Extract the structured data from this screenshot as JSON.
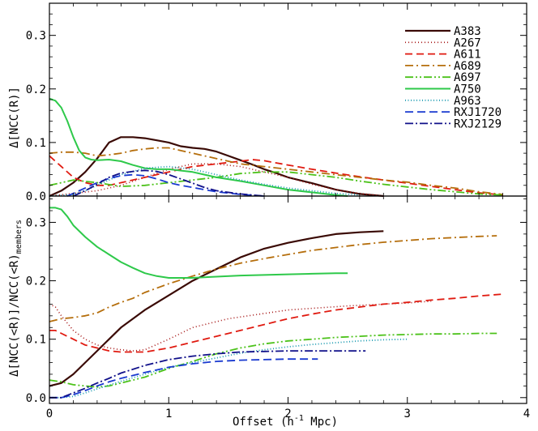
{
  "chart_data": [
    {
      "type": "line",
      "panel": "top",
      "ylabel": "Δ[NCC(R)]",
      "xlim": [
        0,
        4
      ],
      "ylim": [
        0,
        0.36
      ],
      "xticks": [
        0,
        1,
        2,
        3,
        4
      ],
      "yticks": [
        0.0,
        0.1,
        0.2,
        0.3
      ],
      "ytick_labels": [
        "0.0",
        "0.1",
        "0.2",
        "0.3"
      ],
      "legend_position": "top-right",
      "series": [
        {
          "name": "A383",
          "color": "#3a0a05",
          "dash": "solid",
          "width": 2.2,
          "x": [
            0,
            0.1,
            0.2,
            0.3,
            0.4,
            0.5,
            0.6,
            0.7,
            0.8,
            0.9,
            1.0,
            1.1,
            1.2,
            1.3,
            1.4,
            1.5,
            1.6,
            1.7,
            1.8,
            1.9,
            2.0,
            2.2,
            2.4,
            2.6,
            2.8
          ],
          "y": [
            0.0,
            0.01,
            0.025,
            0.045,
            0.07,
            0.1,
            0.11,
            0.11,
            0.108,
            0.104,
            0.1,
            0.093,
            0.09,
            0.088,
            0.083,
            0.075,
            0.067,
            0.059,
            0.05,
            0.043,
            0.035,
            0.024,
            0.012,
            0.004,
            0.0
          ]
        },
        {
          "name": "A267",
          "color": "#a51414",
          "dash": "1,3",
          "width": 1.6,
          "x": [
            0,
            0.2,
            0.4,
            0.6,
            0.8,
            1.0,
            1.2,
            1.4,
            1.6,
            1.8,
            2.0,
            2.2,
            2.4,
            2.6,
            2.8
          ],
          "y": [
            0.0,
            0.005,
            0.01,
            0.02,
            0.035,
            0.05,
            0.06,
            0.06,
            0.055,
            0.045,
            0.035,
            0.022,
            0.012,
            0.005,
            0.0
          ]
        },
        {
          "name": "A611",
          "color": "#e01a10",
          "dash": "9,5",
          "width": 1.8,
          "x": [
            0,
            0.1,
            0.2,
            0.3,
            0.4,
            0.5,
            0.6,
            0.8,
            1.0,
            1.2,
            1.4,
            1.6,
            1.7,
            1.8,
            2.0,
            2.2,
            2.4,
            2.6,
            2.8,
            3.0,
            3.2,
            3.4,
            3.6,
            3.8
          ],
          "y": [
            0.075,
            0.055,
            0.035,
            0.025,
            0.02,
            0.02,
            0.025,
            0.035,
            0.045,
            0.055,
            0.06,
            0.065,
            0.068,
            0.066,
            0.058,
            0.05,
            0.043,
            0.036,
            0.03,
            0.024,
            0.018,
            0.012,
            0.006,
            0.002
          ]
        },
        {
          "name": "A689",
          "color": "#b56e0c",
          "dash": "10,4,2,4",
          "width": 1.8,
          "x": [
            0,
            0.1,
            0.2,
            0.3,
            0.4,
            0.5,
            0.6,
            0.7,
            0.8,
            0.9,
            1.0,
            1.2,
            1.4,
            1.6,
            1.8,
            2.0,
            2.2,
            2.4,
            2.6,
            2.8,
            3.0,
            3.2,
            3.4,
            3.6,
            3.8
          ],
          "y": [
            0.08,
            0.082,
            0.082,
            0.08,
            0.075,
            0.077,
            0.08,
            0.085,
            0.088,
            0.09,
            0.09,
            0.08,
            0.07,
            0.06,
            0.055,
            0.05,
            0.045,
            0.04,
            0.035,
            0.03,
            0.026,
            0.02,
            0.015,
            0.008,
            0.003
          ]
        },
        {
          "name": "A697",
          "color": "#4cc21a",
          "dash": "10,3,2,3,2,3",
          "width": 1.8,
          "x": [
            0,
            0.2,
            0.4,
            0.6,
            0.8,
            1.0,
            1.2,
            1.4,
            1.6,
            1.8,
            2.0,
            2.2,
            2.4,
            2.6,
            2.8,
            3.0,
            3.2,
            3.4,
            3.6,
            3.8
          ],
          "y": [
            0.02,
            0.03,
            0.025,
            0.018,
            0.02,
            0.025,
            0.03,
            0.035,
            0.042,
            0.045,
            0.045,
            0.04,
            0.035,
            0.028,
            0.022,
            0.017,
            0.012,
            0.008,
            0.004,
            0.002
          ]
        },
        {
          "name": "A750",
          "color": "#2ec94a",
          "dash": "solid",
          "width": 2.0,
          "x": [
            0,
            0.05,
            0.1,
            0.15,
            0.2,
            0.25,
            0.3,
            0.35,
            0.4,
            0.5,
            0.6,
            0.7,
            0.8,
            0.9,
            1.0,
            1.2,
            1.4,
            1.6,
            1.8,
            2.0,
            2.2,
            2.4,
            2.5
          ],
          "y": [
            0.182,
            0.178,
            0.165,
            0.14,
            0.11,
            0.085,
            0.072,
            0.068,
            0.067,
            0.068,
            0.065,
            0.058,
            0.052,
            0.05,
            0.05,
            0.045,
            0.035,
            0.028,
            0.02,
            0.012,
            0.007,
            0.002,
            0.0
          ]
        },
        {
          "name": "A963",
          "color": "#1a9ab0",
          "dash": "1,2.5",
          "width": 1.8,
          "x": [
            0,
            0.2,
            0.3,
            0.4,
            0.5,
            0.6,
            0.8,
            1.0,
            1.2,
            1.4,
            1.6,
            1.8,
            2.0,
            2.2,
            2.4,
            2.6
          ],
          "y": [
            0.0,
            0.003,
            0.01,
            0.02,
            0.03,
            0.04,
            0.052,
            0.055,
            0.05,
            0.04,
            0.03,
            0.022,
            0.015,
            0.01,
            0.005,
            0.002
          ]
        },
        {
          "name": "RXJ1720",
          "color": "#1a3ad0",
          "dash": "10,5",
          "width": 1.8,
          "x": [
            0.15,
            0.2,
            0.3,
            0.4,
            0.5,
            0.6,
            0.7,
            0.8,
            0.9,
            1.0,
            1.1,
            1.2,
            1.3,
            1.4,
            1.6,
            1.8
          ],
          "y": [
            0.0,
            0.005,
            0.015,
            0.025,
            0.033,
            0.038,
            0.04,
            0.038,
            0.032,
            0.025,
            0.02,
            0.016,
            0.012,
            0.008,
            0.003,
            0.0
          ]
        },
        {
          "name": "RXJ2129",
          "color": "#10108a",
          "dash": "10,3,2,3",
          "width": 1.8,
          "x": [
            0.2,
            0.3,
            0.4,
            0.5,
            0.6,
            0.7,
            0.8,
            0.9,
            1.0,
            1.1,
            1.2,
            1.3,
            1.4,
            1.6,
            1.8
          ],
          "y": [
            0.0,
            0.01,
            0.022,
            0.035,
            0.043,
            0.046,
            0.048,
            0.046,
            0.04,
            0.032,
            0.024,
            0.016,
            0.01,
            0.004,
            0.0
          ]
        }
      ]
    },
    {
      "type": "line",
      "panel": "bottom",
      "ylabel_main": "Δ[NCC(<R)]/NCC(<R)",
      "ylabel_sub": "members",
      "xlabel_main": "Offset (h",
      "xlabel_sup": "-1",
      "xlabel_end": " Mpc)",
      "xlim": [
        0,
        4
      ],
      "ylim": [
        -0.01,
        0.345
      ],
      "xticks": [
        0,
        1,
        2,
        3,
        4
      ],
      "xtick_labels": [
        "0",
        "1",
        "2",
        "3",
        "4"
      ],
      "yticks": [
        0.0,
        0.1,
        0.2,
        0.3
      ],
      "ytick_labels": [
        "0.0",
        "0.1",
        "0.2",
        "0.3"
      ],
      "series": [
        {
          "name": "A383",
          "color": "#3a0a05",
          "dash": "solid",
          "width": 2.2,
          "x": [
            0,
            0.1,
            0.2,
            0.3,
            0.4,
            0.5,
            0.6,
            0.8,
            1.0,
            1.2,
            1.4,
            1.6,
            1.8,
            2.0,
            2.2,
            2.4,
            2.6,
            2.8
          ],
          "y": [
            0.02,
            0.025,
            0.04,
            0.06,
            0.08,
            0.1,
            0.12,
            0.15,
            0.175,
            0.2,
            0.22,
            0.24,
            0.255,
            0.265,
            0.273,
            0.28,
            0.283,
            0.285
          ]
        },
        {
          "name": "A267",
          "color": "#a51414",
          "dash": "1,3",
          "width": 1.6,
          "x": [
            0,
            0.05,
            0.1,
            0.2,
            0.3,
            0.4,
            0.5,
            0.6,
            0.7,
            0.8,
            1.0,
            1.2,
            1.5,
            2.0,
            2.5,
            3.0,
            3.2
          ],
          "y": [
            0.16,
            0.155,
            0.14,
            0.115,
            0.1,
            0.09,
            0.085,
            0.082,
            0.08,
            0.082,
            0.1,
            0.12,
            0.135,
            0.15,
            0.157,
            0.162,
            0.165
          ]
        },
        {
          "name": "A611",
          "color": "#e01a10",
          "dash": "9,5",
          "width": 1.8,
          "x": [
            0,
            0.05,
            0.1,
            0.2,
            0.3,
            0.4,
            0.5,
            0.6,
            0.8,
            1.0,
            1.2,
            1.4,
            1.6,
            1.8,
            2.0,
            2.2,
            2.4,
            2.6,
            2.8,
            3.0,
            3.2,
            3.4,
            3.6,
            3.8
          ],
          "y": [
            0.115,
            0.115,
            0.11,
            0.1,
            0.09,
            0.085,
            0.08,
            0.078,
            0.078,
            0.085,
            0.095,
            0.105,
            0.115,
            0.125,
            0.135,
            0.143,
            0.15,
            0.155,
            0.16,
            0.163,
            0.167,
            0.17,
            0.174,
            0.177
          ]
        },
        {
          "name": "A689",
          "color": "#b56e0c",
          "dash": "10,4,2,4",
          "width": 1.8,
          "x": [
            0,
            0.1,
            0.2,
            0.3,
            0.4,
            0.5,
            0.6,
            0.7,
            0.8,
            1.0,
            1.2,
            1.4,
            1.6,
            1.8,
            2.0,
            2.2,
            2.4,
            2.6,
            2.8,
            3.0,
            3.2,
            3.4,
            3.6,
            3.75
          ],
          "y": [
            0.13,
            0.135,
            0.137,
            0.14,
            0.145,
            0.155,
            0.163,
            0.17,
            0.18,
            0.195,
            0.208,
            0.22,
            0.23,
            0.238,
            0.245,
            0.252,
            0.257,
            0.262,
            0.266,
            0.269,
            0.272,
            0.274,
            0.276,
            0.277
          ]
        },
        {
          "name": "A697",
          "color": "#4cc21a",
          "dash": "10,3,2,3,2,3",
          "width": 1.8,
          "x": [
            0,
            0.1,
            0.2,
            0.3,
            0.4,
            0.5,
            0.6,
            0.8,
            1.0,
            1.2,
            1.4,
            1.6,
            1.8,
            2.0,
            2.2,
            2.4,
            2.6,
            2.8,
            3.0,
            3.2,
            3.4,
            3.6,
            3.75
          ],
          "y": [
            0.03,
            0.027,
            0.022,
            0.02,
            0.018,
            0.02,
            0.025,
            0.035,
            0.05,
            0.062,
            0.075,
            0.085,
            0.092,
            0.097,
            0.1,
            0.103,
            0.105,
            0.107,
            0.108,
            0.109,
            0.109,
            0.11,
            0.11
          ]
        },
        {
          "name": "A750",
          "color": "#2ec94a",
          "dash": "solid",
          "width": 2.0,
          "x": [
            0,
            0.05,
            0.1,
            0.15,
            0.2,
            0.3,
            0.4,
            0.5,
            0.6,
            0.7,
            0.8,
            0.9,
            1.0,
            1.2,
            1.4,
            1.6,
            1.8,
            2.0,
            2.2,
            2.4,
            2.5
          ],
          "y": [
            0.325,
            0.325,
            0.322,
            0.31,
            0.295,
            0.275,
            0.258,
            0.245,
            0.232,
            0.222,
            0.213,
            0.208,
            0.205,
            0.205,
            0.207,
            0.209,
            0.21,
            0.211,
            0.212,
            0.213,
            0.213
          ]
        },
        {
          "name": "A963",
          "color": "#1a9ab0",
          "dash": "1,2.5",
          "width": 1.8,
          "x": [
            0,
            0.1,
            0.2,
            0.3,
            0.4,
            0.6,
            0.8,
            1.0,
            1.2,
            1.4,
            1.6,
            1.8,
            2.0,
            2.2,
            2.4,
            2.6,
            2.8,
            3.0
          ],
          "y": [
            0.0,
            0.0,
            0.002,
            0.008,
            0.015,
            0.028,
            0.04,
            0.052,
            0.06,
            0.068,
            0.076,
            0.082,
            0.087,
            0.091,
            0.094,
            0.097,
            0.099,
            0.1
          ]
        },
        {
          "name": "RXJ1720",
          "color": "#1a3ad0",
          "dash": "10,5",
          "width": 1.8,
          "x": [
            0,
            0.1,
            0.2,
            0.3,
            0.4,
            0.5,
            0.6,
            0.8,
            1.0,
            1.2,
            1.4,
            1.6,
            1.8,
            2.0,
            2.25
          ],
          "y": [
            0.0,
            0.0,
            0.005,
            0.012,
            0.02,
            0.027,
            0.033,
            0.043,
            0.052,
            0.058,
            0.062,
            0.064,
            0.065,
            0.066,
            0.066
          ]
        },
        {
          "name": "RXJ2129",
          "color": "#10108a",
          "dash": "10,3,2,3",
          "width": 1.8,
          "x": [
            0,
            0.1,
            0.2,
            0.3,
            0.4,
            0.5,
            0.6,
            0.8,
            1.0,
            1.2,
            1.4,
            1.6,
            1.8,
            2.0,
            2.2,
            2.4,
            2.65
          ],
          "y": [
            0.0,
            0.0,
            0.008,
            0.016,
            0.025,
            0.033,
            0.042,
            0.055,
            0.065,
            0.071,
            0.075,
            0.078,
            0.079,
            0.08,
            0.08,
            0.08,
            0.08
          ]
        }
      ]
    }
  ]
}
